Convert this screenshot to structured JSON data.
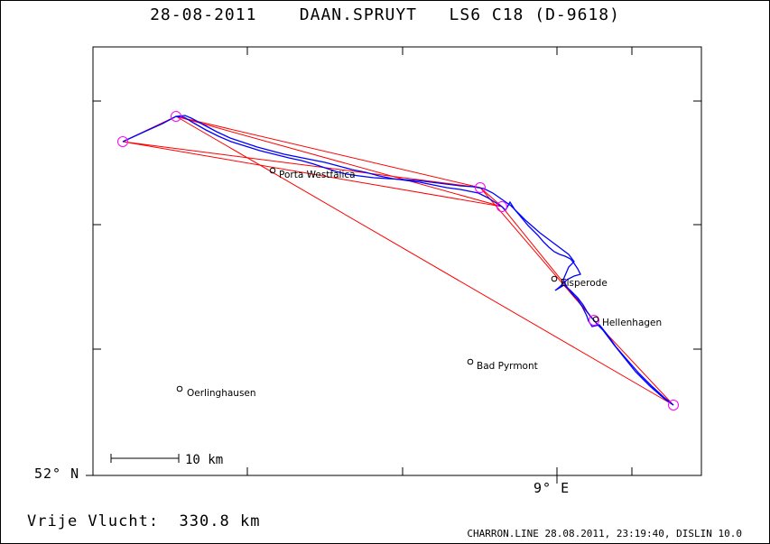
{
  "title": {
    "date": "28-08-2011",
    "pilot": "DAAN.SPRUYT",
    "glider": "LS6 C18",
    "registration": "(D-9618)"
  },
  "axes": {
    "lat_label": "52° N",
    "lon_label": "9° E"
  },
  "scale_bar": {
    "label": "10 km"
  },
  "places": [
    {
      "name": "Porta Westfalica"
    },
    {
      "name": "Elsperode"
    },
    {
      "name": "Hellenhagen"
    },
    {
      "name": "Bad Pyrmont"
    },
    {
      "name": "Oerlinghausen"
    }
  ],
  "flight": {
    "label": "Vrije Vlucht:",
    "distance": "330.8 km"
  },
  "footer": "CHARRON.LINE 28.08.2011, 23:19:40, DISLIN 10.0",
  "colors": {
    "track": "#0000ff",
    "task": "#ff0000",
    "turnpoint": "#ff00ff"
  }
}
